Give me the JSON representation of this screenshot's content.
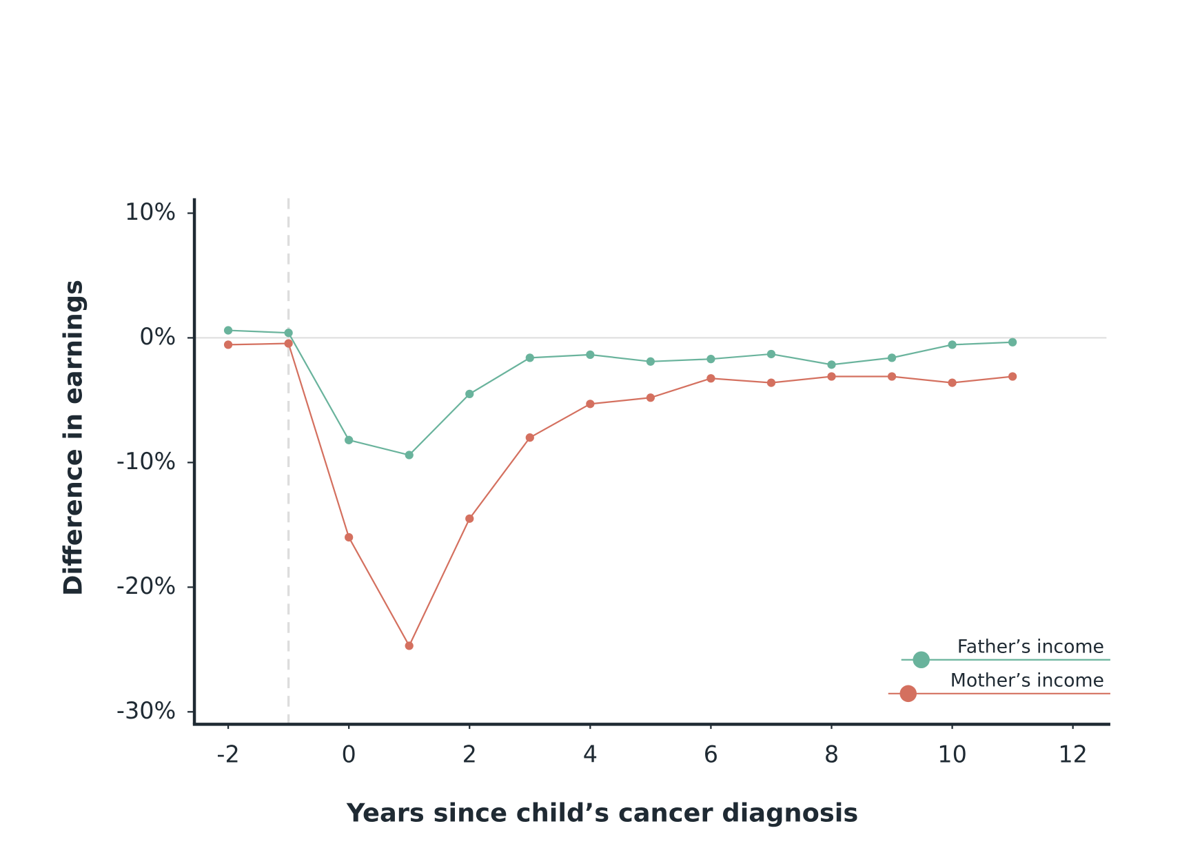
{
  "chart_data": {
    "type": "line",
    "ylabel": "Difference in earnings",
    "xlabel": "Years since child’s cancer diagnosis",
    "x": [
      -2,
      -1,
      0,
      1,
      2,
      3,
      4,
      5,
      6,
      7,
      8,
      9,
      10,
      11
    ],
    "series": [
      {
        "name": "Father’s income",
        "color": "#69b39c",
        "values": [
          0.6,
          0.4,
          -8.2,
          -9.4,
          -4.5,
          -1.6,
          -1.35,
          -1.9,
          -1.7,
          -1.3,
          -2.15,
          -1.6,
          -0.55,
          -0.35
        ]
      },
      {
        "name": "Mother’s income",
        "color": "#d4705f",
        "values": [
          -0.55,
          -0.45,
          -16.0,
          -24.7,
          -14.5,
          -8.0,
          -5.3,
          -4.8,
          -3.25,
          -3.6,
          -3.1,
          -3.1,
          -3.6,
          -3.1
        ]
      }
    ],
    "xlim": [
      -2.56,
      12.62
    ],
    "ylim": [
      -31,
      11.2
    ],
    "xticks": [
      -2,
      0,
      2,
      4,
      6,
      8,
      10,
      12
    ],
    "yticks": [
      {
        "value": 10,
        "label": "10%"
      },
      {
        "value": 0,
        "label": "0%"
      },
      {
        "value": -10,
        "label": "-10%"
      },
      {
        "value": -20,
        "label": "-20%"
      },
      {
        "value": -30,
        "label": "-30%"
      }
    ],
    "reference_x": -1,
    "zero_line": true,
    "legend": "lower right"
  }
}
